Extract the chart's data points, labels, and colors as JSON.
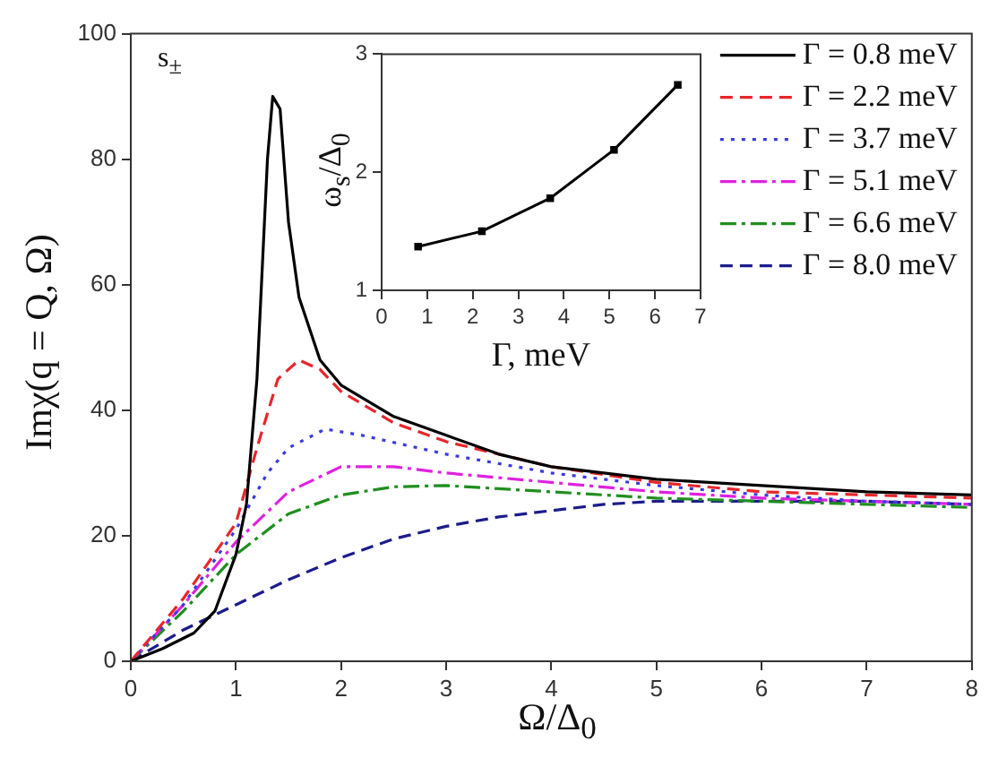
{
  "chart_data": [
    {
      "type": "line",
      "xlabel": "Ω/Δ$_{0}$",
      "ylabel": "Imχ(q = Q, Ω)",
      "annotations": [
        "s$_{±}$"
      ],
      "xlim": [
        0,
        8
      ],
      "xticks": [
        0,
        1,
        2,
        3,
        4,
        5,
        6,
        7,
        8
      ],
      "ylim": [
        0,
        100
      ],
      "yticks": [
        0,
        20,
        40,
        60,
        80,
        100
      ],
      "grid": false,
      "legend": "top right",
      "marker": "none",
      "series": [
        {
          "name": "Γ = 0.8 meV",
          "color": "#000000",
          "line_style": "solid",
          "x": [
            0,
            0.3,
            0.6,
            0.8,
            1.0,
            1.1,
            1.2,
            1.3,
            1.35,
            1.42,
            1.5,
            1.6,
            1.8,
            2.0,
            2.5,
            3.0,
            3.5,
            4.0,
            5.0,
            6.0,
            7.0,
            8.0
          ],
          "values": [
            0,
            2,
            4.5,
            8,
            17,
            25,
            45,
            80,
            90,
            88,
            70,
            58,
            48,
            44,
            39,
            36,
            33,
            31,
            29,
            28,
            27,
            26.5
          ]
        },
        {
          "name": "Γ = 2.2 meV",
          "color": "#e8262b",
          "line_style": "dashed",
          "x": [
            0,
            0.5,
            1.0,
            1.2,
            1.4,
            1.6,
            1.8,
            2.0,
            2.5,
            3.0,
            3.5,
            4.0,
            5.0,
            6.0,
            7.0,
            8.0
          ],
          "values": [
            0,
            10,
            22,
            34,
            45,
            48,
            46.5,
            43,
            38,
            35,
            33,
            31,
            28.5,
            27,
            26.5,
            26
          ]
        },
        {
          "name": "Γ = 3.7 meV",
          "color": "#3a3ae0",
          "line_style": "dotted",
          "x": [
            0,
            0.5,
            1.0,
            1.3,
            1.5,
            1.85,
            2.2,
            3.0,
            4.0,
            5.0,
            6.0,
            7.0,
            8.0
          ],
          "values": [
            0,
            9,
            21,
            30,
            34,
            37,
            36,
            33,
            30,
            28,
            26.5,
            25.5,
            25
          ]
        },
        {
          "name": "Γ = 5.1 meV",
          "color": "#e020e0",
          "line_style": "dashdot",
          "x": [
            0,
            0.5,
            1.0,
            1.5,
            2.0,
            2.5,
            3.0,
            4.0,
            5.0,
            6.0,
            7.0,
            8.0
          ],
          "values": [
            0,
            9,
            19,
            27,
            31,
            31,
            30,
            28.5,
            27,
            26,
            25.5,
            25
          ]
        },
        {
          "name": "Γ = 6.6 meV",
          "color": "#1f8f1f",
          "line_style": "dashdot",
          "x": [
            0,
            0.5,
            1.0,
            1.5,
            2.0,
            2.5,
            3.0,
            4.0,
            5.0,
            6.0,
            7.0,
            8.0
          ],
          "values": [
            0,
            8,
            17,
            23.5,
            26.5,
            27.8,
            28,
            27,
            26,
            25.5,
            25,
            24.5
          ]
        },
        {
          "name": "Γ = 8.0 meV",
          "color": "#1c1c8c",
          "line_style": "dashed",
          "x": [
            0,
            0.5,
            1.0,
            1.5,
            2.0,
            2.5,
            3.0,
            3.5,
            4.0,
            4.5,
            5.0,
            6.0,
            7.0,
            8.0
          ],
          "values": [
            0,
            5,
            9,
            13,
            16.5,
            19.5,
            21.5,
            23,
            24,
            25,
            25.5,
            25.5,
            25.5,
            25
          ]
        }
      ]
    },
    {
      "type": "line",
      "xlabel": "Γ, meV",
      "ylabel": "ω$_{s}$/Δ$_{0}$",
      "xlim": [
        0,
        7
      ],
      "xticks": [
        0,
        1,
        2,
        3,
        4,
        5,
        6,
        7
      ],
      "ylim": [
        1,
        3
      ],
      "yticks": [
        1,
        2,
        3
      ],
      "grid": false,
      "marker": "square",
      "series": [
        {
          "color": "#000000",
          "line_style": "solid",
          "x": [
            0.8,
            2.2,
            3.7,
            5.1,
            6.5
          ],
          "values": [
            1.37,
            1.5,
            1.78,
            2.19,
            2.74
          ]
        }
      ]
    }
  ]
}
